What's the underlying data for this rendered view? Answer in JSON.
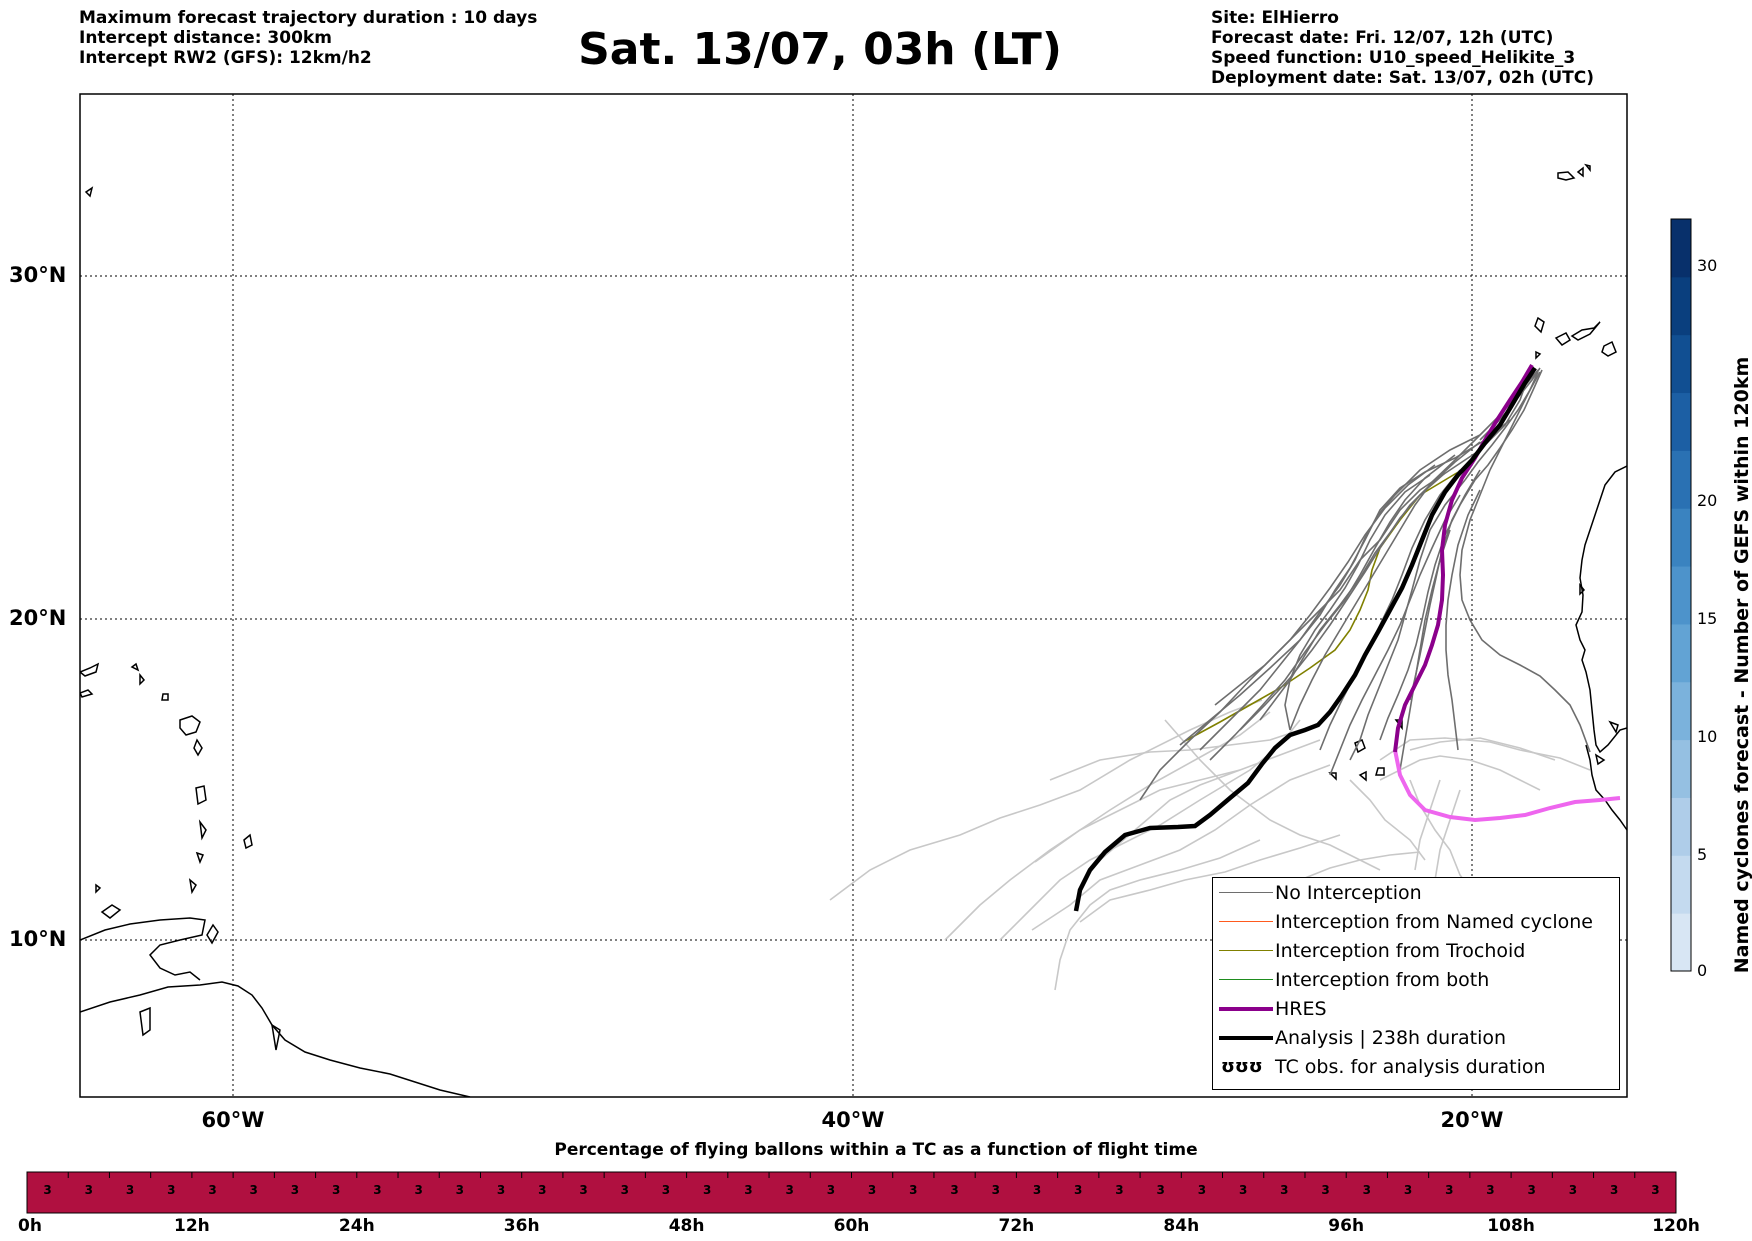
{
  "header": {
    "left": [
      "Maximum forecast trajectory duration : 10 days",
      "Intercept distance: 300km",
      "Intercept RW2 (GFS):  12km/h2"
    ],
    "title": "Sat. 13/07, 03h (LT)",
    "right": [
      "Site: ElHierro",
      "Forecast date: Fri. 12/07, 12h (UTC)",
      "Speed function: U10_speed_Helikite_3",
      "Deployment date: Sat. 13/07, 02h (UTC)"
    ]
  },
  "map": {
    "lat_labels": [
      "30°N",
      "20°N",
      "10°N"
    ],
    "lon_labels": [
      "60°W",
      "40°W",
      "20°W"
    ],
    "colors": {
      "no_interception": "#6e6e6e",
      "faded": "#c8c8c8",
      "named_cyclone": "#ff5a1e",
      "trochoid": "#808000",
      "both": "#1e8c1e",
      "hres": "#8b008b",
      "hres_light": "#ee66ee",
      "analysis": "#000000"
    }
  },
  "legend": {
    "items": [
      {
        "label": "No Interception",
        "color": "#6e6e6e",
        "width": 1.5
      },
      {
        "label": "Interception from Named cyclone",
        "color": "#ff5a1e",
        "width": 1.5
      },
      {
        "label": "Interception from Trochoid",
        "color": "#808000",
        "width": 1.5
      },
      {
        "label": "Interception from both",
        "color": "#1e8c1e",
        "width": 1.5
      },
      {
        "label": "HRES",
        "color": "#8b008b",
        "width": 4
      },
      {
        "label": "Analysis | 238h duration",
        "color": "#000000",
        "width": 4
      },
      {
        "label": "TC obs. for analysis duration",
        "symbol": "ʊʊʊ"
      }
    ]
  },
  "colorbar": {
    "label": "Named cyclones forecast - Number of GEFS within 120km",
    "ticks": [
      "0",
      "5",
      "10",
      "15",
      "20",
      "30"
    ],
    "colors": [
      "#d8e6f4",
      "#c4daef",
      "#afcde9",
      "#95c0e2",
      "#7bb2dc",
      "#62a3d4",
      "#4d93cb",
      "#3a83c0",
      "#2a71b3",
      "#1c5fa4",
      "#114f92",
      "#0a3f7e",
      "#08306b"
    ]
  },
  "timebar": {
    "title": "Percentage of flying ballons within a TC as a function of flight time",
    "time_labels": [
      "0h",
      "12h",
      "24h",
      "36h",
      "48h",
      "60h",
      "72h",
      "84h",
      "96h",
      "108h",
      "120h"
    ],
    "cell_value": "3",
    "cell_count": 40,
    "color": "#b01040"
  }
}
